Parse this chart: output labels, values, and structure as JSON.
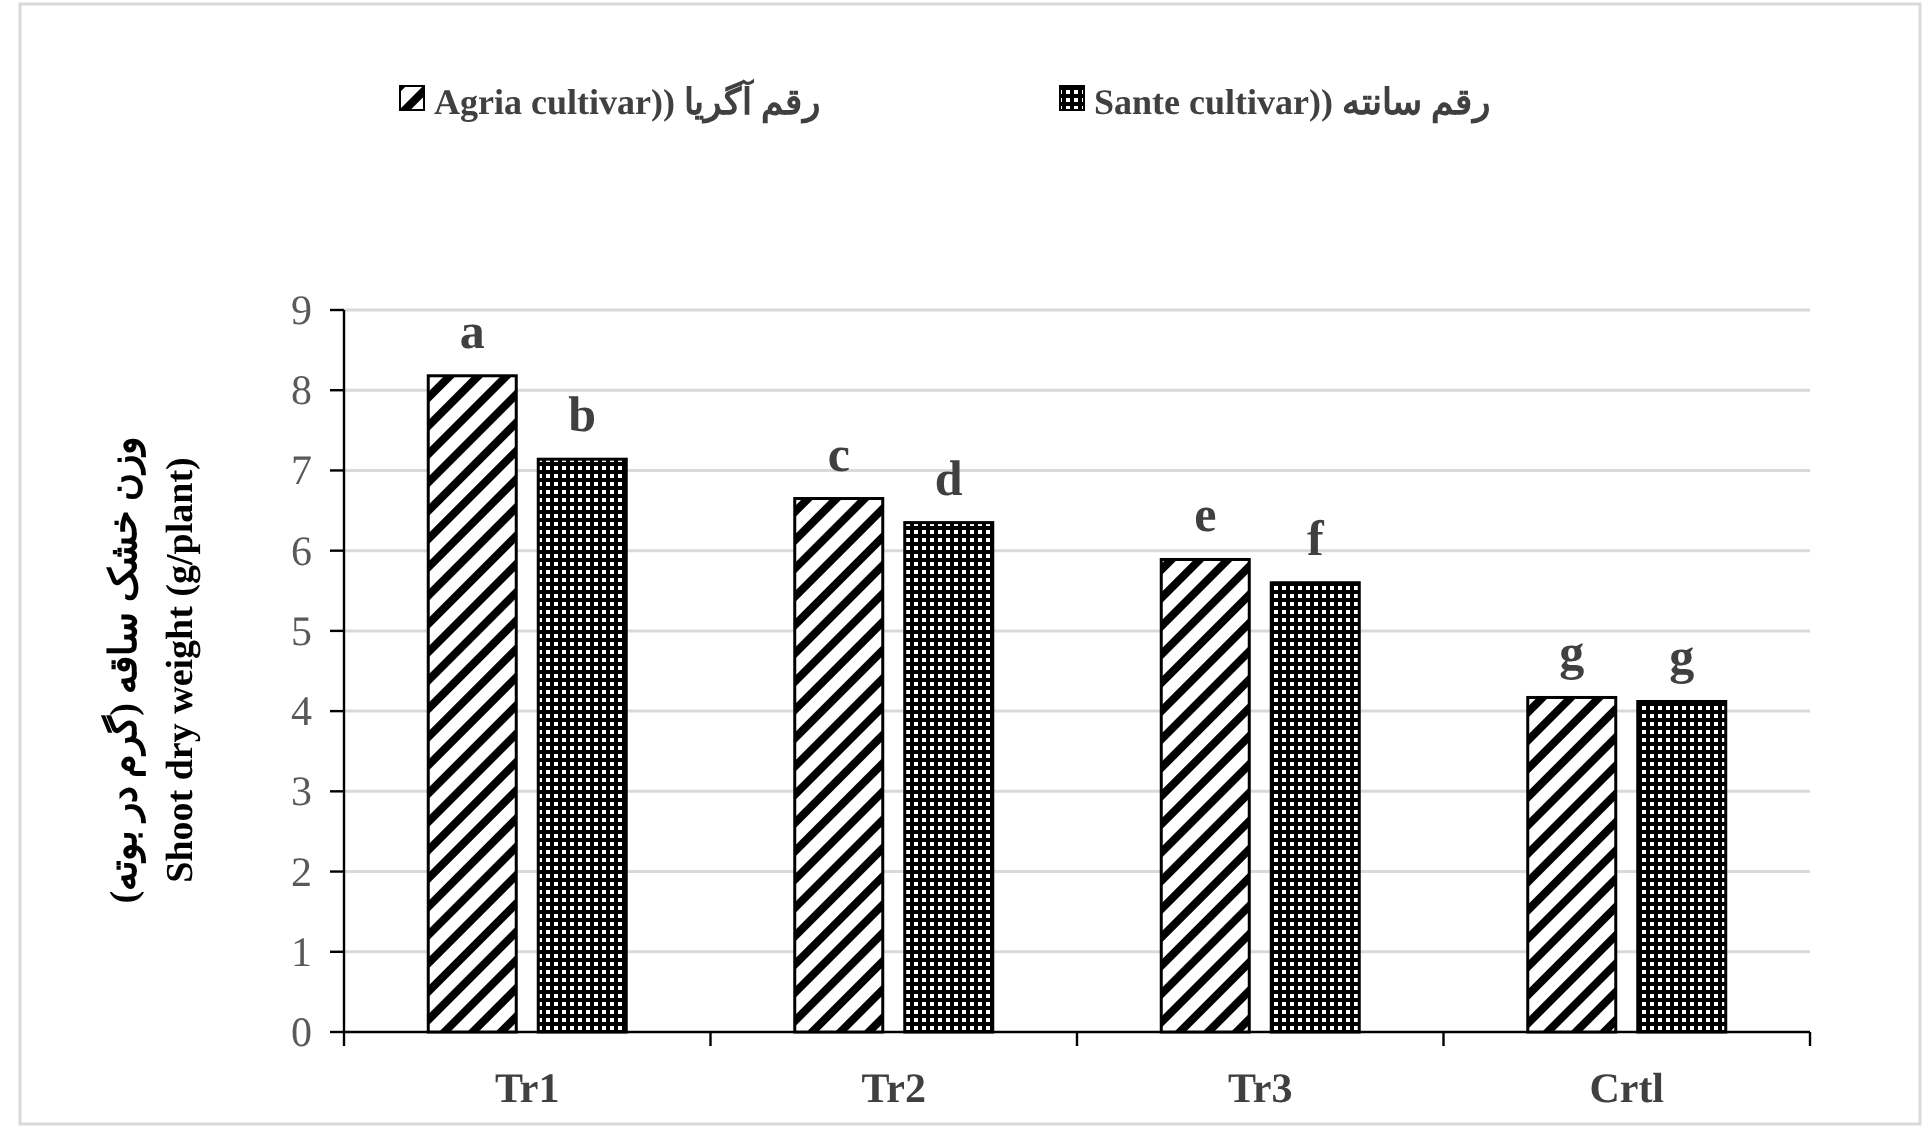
{
  "chart_data": {
    "type": "bar",
    "ylabel": "وزن خشک ساقه (گرم در بوته)\nShoot dry weight (g/plant)",
    "categories": [
      "Tr1",
      "Tr2",
      "Tr3",
      "Crtl"
    ],
    "series": [
      {
        "name": "Agria cultivar)) رقم آگریا",
        "color": "#000000",
        "values": [
          8.18,
          6.65,
          5.89,
          4.17
        ],
        "value_labels": [
          "a",
          "c",
          "e",
          "g"
        ]
      },
      {
        "name": "Sante cultivar)) رقم سانته",
        "color": "#000000",
        "values": [
          7.14,
          6.35,
          5.6,
          4.12
        ],
        "value_labels": [
          "b",
          "d",
          "f",
          "g"
        ]
      }
    ],
    "ylim": [
      0,
      9
    ],
    "yticks": [
      0,
      1,
      2,
      3,
      4,
      5,
      6,
      7,
      8,
      9
    ],
    "grid": "y",
    "legend": "top"
  }
}
